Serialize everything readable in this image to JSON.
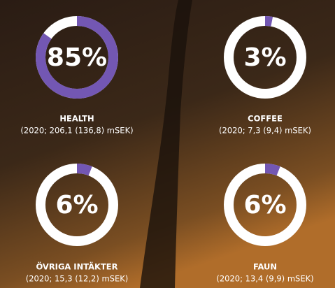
{
  "chart_data": [
    {
      "type": "donut",
      "categories": [
        "HEALTH"
      ],
      "values": [
        85
      ],
      "value_labels": [
        "85%"
      ],
      "subtitle": "(2020; 206,1 (136,8) mSEK)",
      "color": "#7357b3",
      "track_color": "#ffffff"
    },
    {
      "type": "donut",
      "categories": [
        "COFFEE"
      ],
      "values": [
        3
      ],
      "value_labels": [
        "3%"
      ],
      "subtitle": "(2020; 7,3 (9,4) mSEK)",
      "color": "#7357b3",
      "track_color": "#ffffff"
    },
    {
      "type": "donut",
      "categories": [
        "ÖVRIGA INTÄKTER"
      ],
      "values": [
        6
      ],
      "value_labels": [
        "6%"
      ],
      "subtitle": "(2020; 15,3 (12,2) mSEK)",
      "color": "#7357b3",
      "track_color": "#ffffff"
    },
    {
      "type": "donut",
      "categories": [
        "FAUN"
      ],
      "values": [
        6
      ],
      "value_labels": [
        "6%"
      ],
      "subtitle": "(2020; 13,4 (9,9) mSEK)",
      "color": "#7357b3",
      "track_color": "#ffffff"
    }
  ]
}
